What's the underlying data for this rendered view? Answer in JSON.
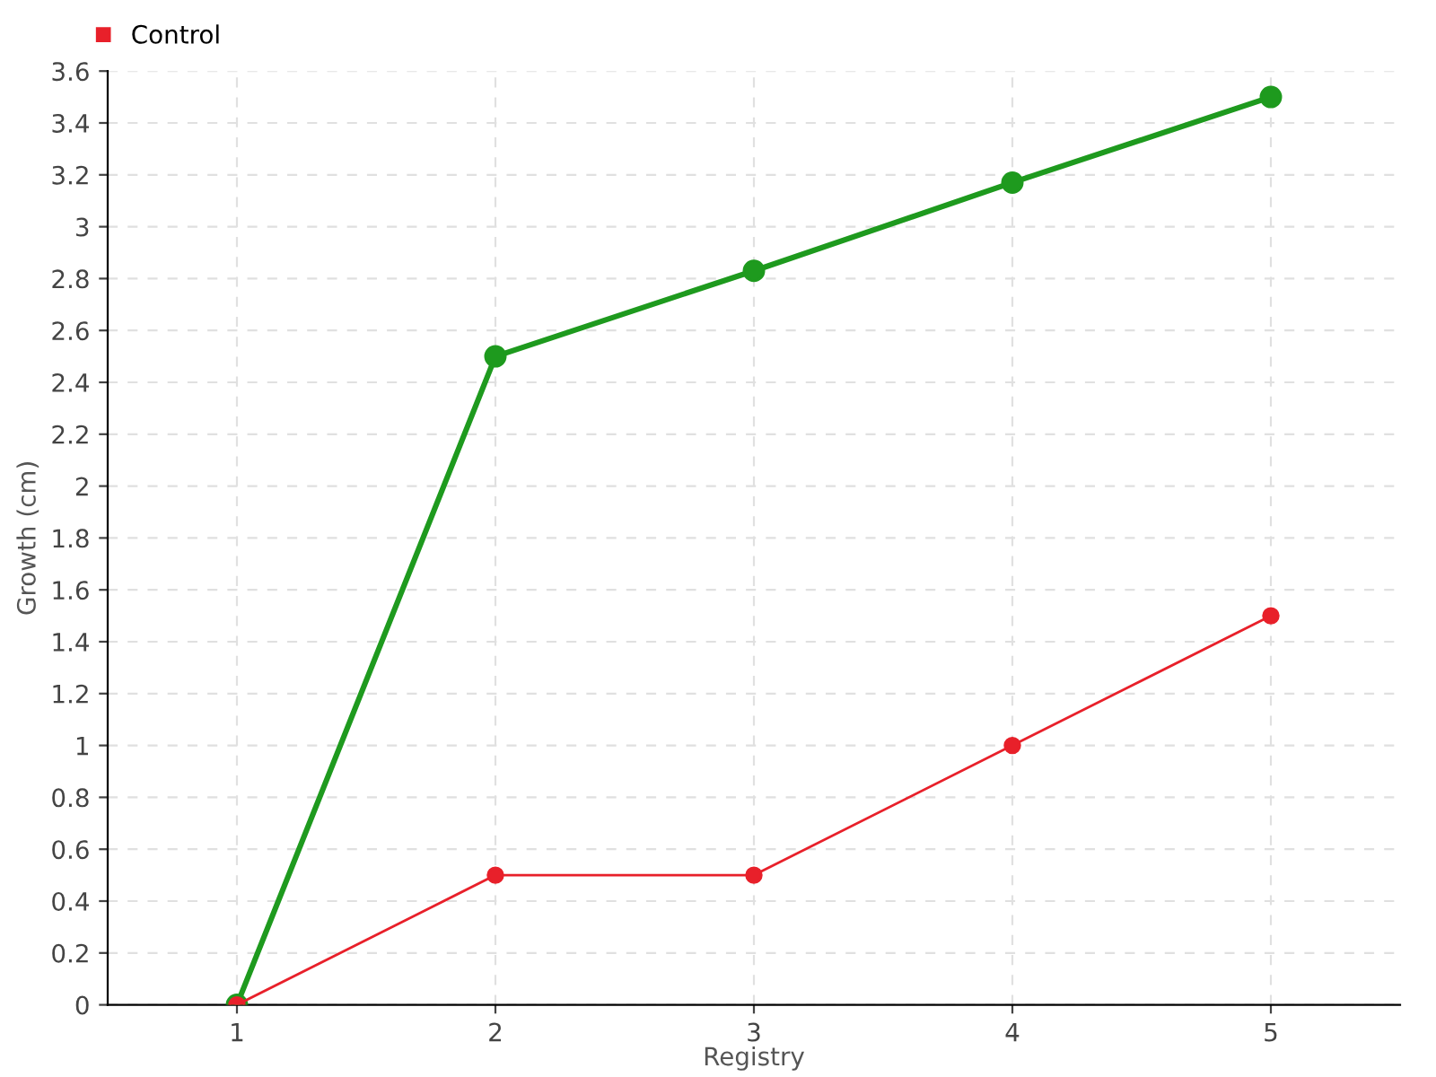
{
  "chart_data": {
    "type": "line",
    "xlabel": "Registry",
    "ylabel": "Growth (cm)",
    "categories": [
      "1",
      "2",
      "3",
      "4",
      "5"
    ],
    "series": [
      {
        "color": "#1e9a1e",
        "values": [
          0,
          2.5,
          2.83,
          3.17,
          3.5
        ]
      },
      {
        "name": "Control",
        "color": "#e8202a",
        "values": [
          0,
          0.5,
          0.5,
          1.0,
          1.5
        ]
      }
    ],
    "ylim": [
      0,
      3.6
    ],
    "yticks": [
      {
        "value": 0,
        "label": "0"
      },
      {
        "value": 0.2,
        "label": "0.2"
      },
      {
        "value": 0.4,
        "label": "0.4"
      },
      {
        "value": 0.6,
        "label": "0.6"
      },
      {
        "value": 0.8,
        "label": "0.8"
      },
      {
        "value": 1,
        "label": "1"
      },
      {
        "value": 1.2,
        "label": "1.2"
      },
      {
        "value": 1.4,
        "label": "1.4"
      },
      {
        "value": 1.6,
        "label": "1.6"
      },
      {
        "value": 1.8,
        "label": "1.8"
      },
      {
        "value": 2,
        "label": "2"
      },
      {
        "value": 2.2,
        "label": "2.2"
      },
      {
        "value": 2.4,
        "label": "2.4"
      },
      {
        "value": 2.6,
        "label": "2.6"
      },
      {
        "value": 2.8,
        "label": "2.8"
      },
      {
        "value": 3,
        "label": "3"
      },
      {
        "value": 3.2,
        "label": "3.2"
      },
      {
        "value": 3.4,
        "label": "3.4"
      },
      {
        "value": 3.6,
        "label": "3.6"
      }
    ],
    "grid": true,
    "legend": "top left",
    "marker": "circle",
    "line_style": "solid"
  }
}
